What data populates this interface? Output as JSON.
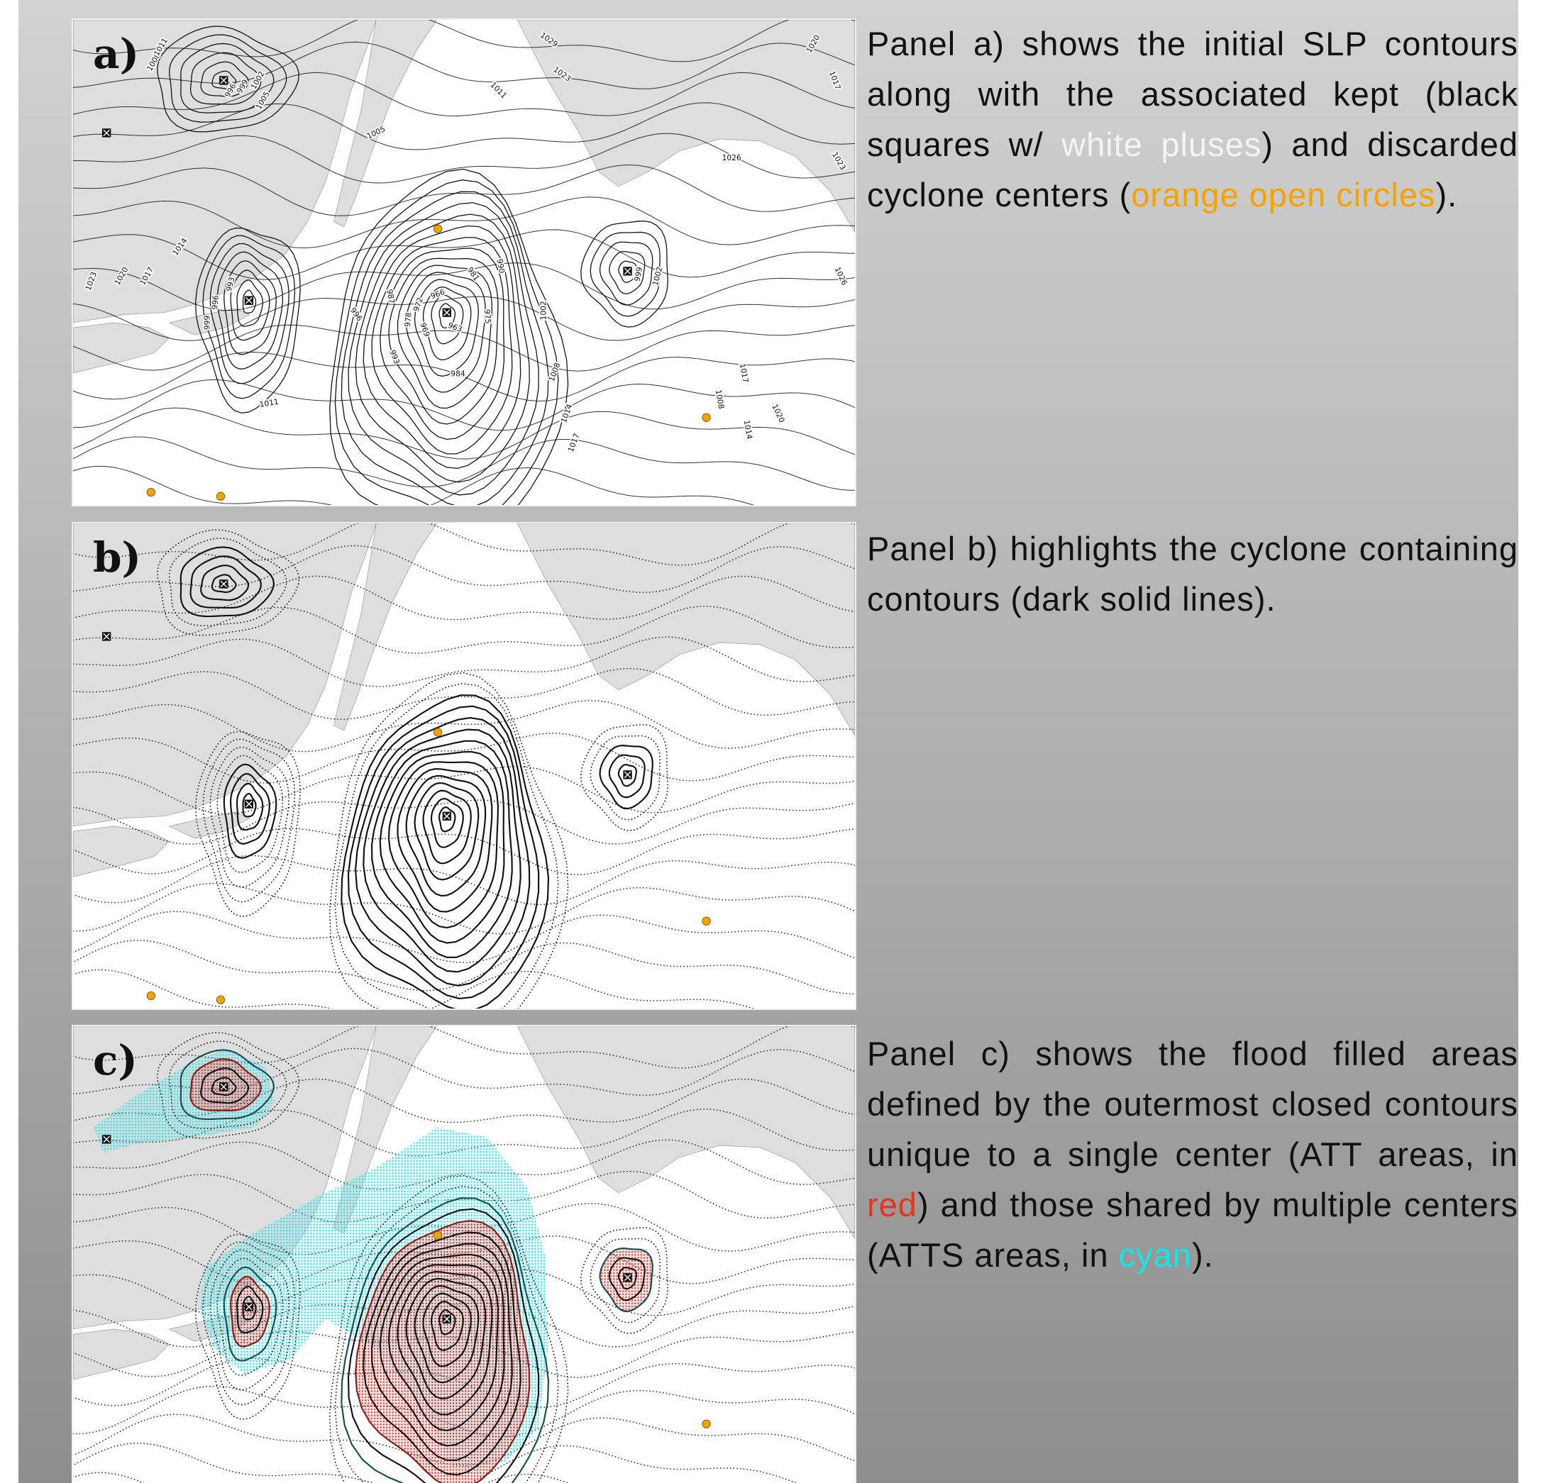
{
  "panels": [
    {
      "label": "a)",
      "description": [
        {
          "text": "Panel a) shows the initial SLP contours along with the associated kept (black squares w/ "
        },
        {
          "text": "white pluses",
          "color": "#f4f4f4"
        },
        {
          "text": ") and discarded cyclone centers ("
        },
        {
          "text": "orange open circles",
          "color": "#f5a300"
        },
        {
          "text": ")."
        }
      ],
      "contour_labels": [
        "1008",
        "1011",
        "996",
        "999",
        "1002",
        "1005",
        "1005",
        "1011",
        "1029",
        "1023",
        "1020",
        "1017",
        "1026",
        "1023",
        "1026",
        "1014",
        "1017",
        "1020",
        "1023",
        "993",
        "996",
        "999",
        "996",
        "987",
        "993",
        "978",
        "972",
        "966",
        "969",
        "963",
        "981",
        "990",
        "975",
        "984",
        "1002",
        "1008",
        "1014",
        "1017",
        "999",
        "1002",
        "1008",
        "1017",
        "1014",
        "1020",
        "1011"
      ]
    },
    {
      "label": "b)",
      "description": [
        {
          "text": "Panel b) highlights the cyclone containing contours (dark solid lines)."
        }
      ]
    },
    {
      "label": "c)",
      "description": [
        {
          "text": "Panel c) shows the flood filled areas defined by the outermost closed contours unique to a single center (ATT areas, in "
        },
        {
          "text": "red",
          "color": "#e8341c"
        },
        {
          "text": ") and those shared by multiple centers (ATTS areas, in "
        },
        {
          "text": "cyan",
          "color": "#12e6e6"
        },
        {
          "text": ")."
        }
      ]
    }
  ]
}
